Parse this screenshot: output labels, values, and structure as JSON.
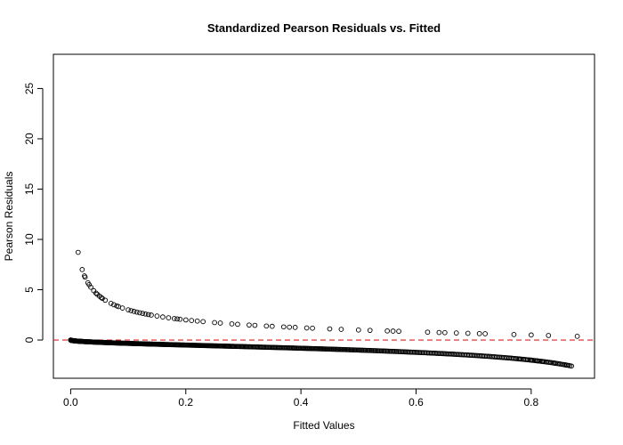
{
  "chart_data": {
    "type": "scatter",
    "title": "Standardized Pearson Residuals vs. Fitted",
    "xlabel": "Fitted Values",
    "ylabel": "Pearson Residuals",
    "xlim": [
      -0.03,
      0.91
    ],
    "ylim": [
      -3.8,
      28.4
    ],
    "x_ticks": [
      0.0,
      0.2,
      0.4,
      0.6,
      0.8
    ],
    "x_tick_labels": [
      "0.0",
      "0.2",
      "0.4",
      "0.6",
      "0.8"
    ],
    "y_ticks": [
      0,
      5,
      10,
      15,
      20,
      25
    ],
    "y_tick_labels": [
      "0",
      "5",
      "10",
      "15",
      "20",
      "25"
    ],
    "reference_line": {
      "y": 0,
      "style": "dashed",
      "color": "#d62728"
    },
    "grid": false,
    "legend": "none",
    "positive_branch_model": "y = sqrt((1 - x) / x)",
    "positive_branch_x": [
      0.013,
      0.02,
      0.024,
      0.025,
      0.03,
      0.032,
      0.035,
      0.04,
      0.044,
      0.046,
      0.05,
      0.053,
      0.055,
      0.06,
      0.07,
      0.075,
      0.08,
      0.083,
      0.09,
      0.1,
      0.105,
      0.11,
      0.115,
      0.12,
      0.125,
      0.13,
      0.135,
      0.14,
      0.15,
      0.16,
      0.17,
      0.18,
      0.185,
      0.19,
      0.2,
      0.21,
      0.22,
      0.23,
      0.25,
      0.26,
      0.28,
      0.29,
      0.31,
      0.32,
      0.34,
      0.35,
      0.37,
      0.38,
      0.39,
      0.41,
      0.42,
      0.45,
      0.47,
      0.5,
      0.52,
      0.55,
      0.56,
      0.57,
      0.62,
      0.64,
      0.65,
      0.67,
      0.69,
      0.71,
      0.72,
      0.77,
      0.8,
      0.83,
      0.88
    ],
    "negative_branch_model": "y = -sqrt(x / (1 - x))",
    "negative_branch_x_range": [
      0.0,
      0.87
    ],
    "negative_branch_count": 540,
    "negative_branch_extra_x": [
      0.78,
      0.8,
      0.81,
      0.82,
      0.84,
      0.86
    ]
  }
}
